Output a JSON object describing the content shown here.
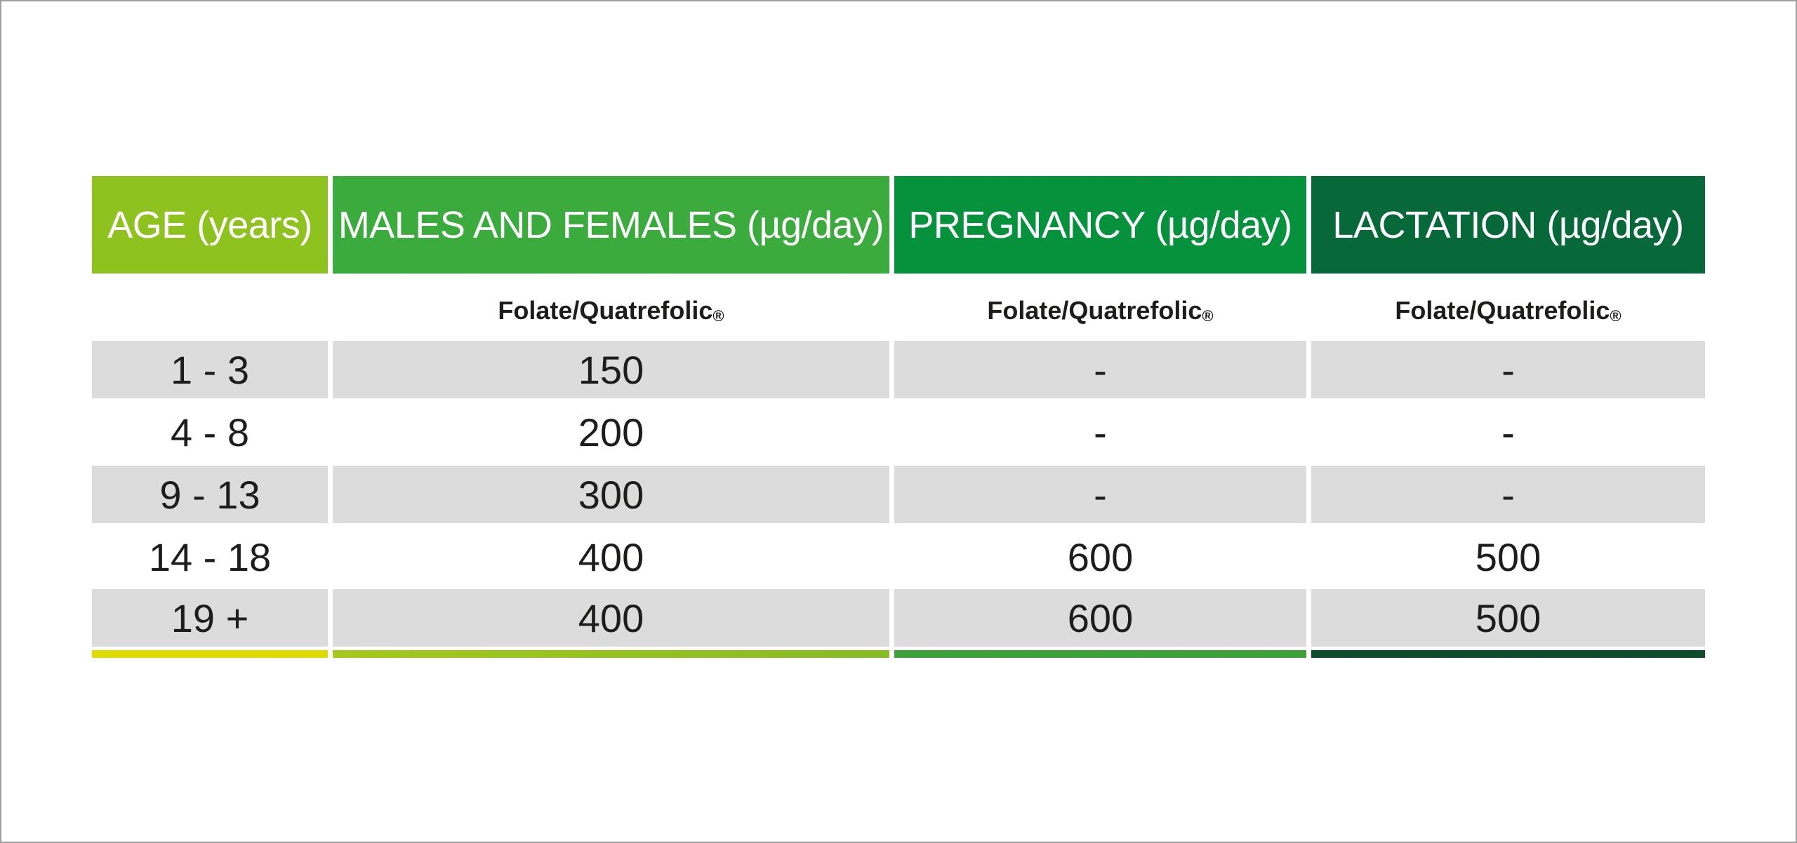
{
  "chart_data": {
    "type": "table",
    "title": "",
    "columns": [
      "AGE (years)",
      "MALES AND FEMALES (µg/day)",
      "PREGNANCY (µg/day)",
      "LACTATION (µg/day)"
    ],
    "subheaders": [
      "",
      "Folate/Quatrefolic",
      "Folate/Quatrefolic",
      "Folate/Quatrefolic"
    ],
    "registered_mark": "®",
    "rows": [
      [
        "1 - 3",
        "150",
        "-",
        "-"
      ],
      [
        "4 - 8",
        "200",
        "-",
        "-"
      ],
      [
        "9 - 13",
        "300",
        "-",
        "-"
      ],
      [
        "14 - 18",
        "400",
        "600",
        "500"
      ],
      [
        "19 +",
        "400",
        "600",
        "500"
      ]
    ],
    "shaded_rows": [
      0,
      2,
      4
    ],
    "colors": {
      "header": [
        "#8dc21f",
        "#3aab3c",
        "#06923c",
        "#07683a"
      ],
      "row_shade": "#dcdcdc",
      "bottom_bar": [
        "#dedc00",
        "#9ac41f",
        "#3ea23a",
        "#0d4d2c"
      ]
    }
  }
}
